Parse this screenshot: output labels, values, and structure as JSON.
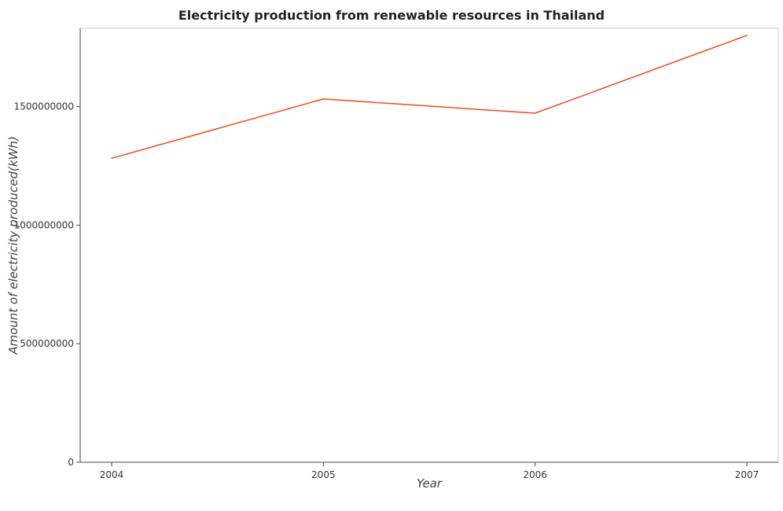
{
  "chart_data": {
    "type": "line",
    "title": "Electricity production from renewable resources in Thailand",
    "xlabel": "Year",
    "ylabel": "Amount of electricity produced(kWh)",
    "categories": [
      "2004",
      "2005",
      "2006",
      "2007"
    ],
    "series": [
      {
        "values": [
          1282000000,
          1532000000,
          1472000000,
          1800000000
        ],
        "color": "#e8501e"
      }
    ],
    "ylim": [
      0,
      1830000000
    ],
    "yticks": [
      0,
      500000000,
      1000000000,
      1500000000
    ],
    "ytick_labels": [
      "0",
      "500000000",
      "1000000000",
      "1500000000"
    ],
    "grid": false,
    "legend": "none"
  }
}
